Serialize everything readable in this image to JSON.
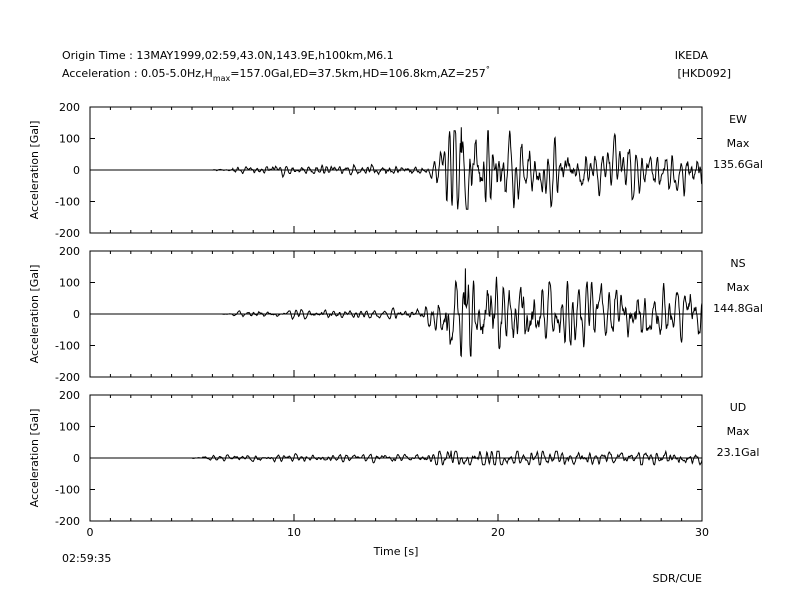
{
  "header": {
    "origin_time": "Origin Time : 13MAY1999,02:59,43.0N,143.9E,h100km,M6.1",
    "acc_prefix": "Acceleration : 0.05-5.0Hz,H",
    "acc_sub": "max",
    "acc_suffix": "=157.0Gal,ED=37.5km,HD=106.8km,AZ=257",
    "acc_degree": "°",
    "station": "IKEDA",
    "code": "[HKD092]"
  },
  "footer": {
    "start_time": "02:59:35",
    "credit": "SDR/CUE"
  },
  "chart_data": [
    {
      "type": "line",
      "component": "EW",
      "max_label": "Max",
      "max_value": "135.6Gal",
      "ylabel": "Acceleration [Gal]",
      "xlabel": "",
      "xlim": [
        0,
        30
      ],
      "ylim": [
        -200,
        200
      ],
      "yticks": [
        200,
        100,
        0,
        -100,
        -200
      ],
      "trace": {
        "start": 6.0,
        "p_arrival": 7.0,
        "s_arrival": 16.8,
        "peak_time": 18.2,
        "peak": 135.6,
        "coda_decay": 0.13,
        "coda_level": 40,
        "pre_level": 8,
        "seed": 7
      }
    },
    {
      "type": "line",
      "component": "NS",
      "max_label": "Max",
      "max_value": "144.8Gal",
      "ylabel": "Acceleration [Gal]",
      "xlabel": "",
      "xlim": [
        0,
        30
      ],
      "ylim": [
        -200,
        200
      ],
      "yticks": [
        200,
        100,
        0,
        -100,
        -200
      ],
      "trace": {
        "start": 6.5,
        "p_arrival": 7.0,
        "s_arrival": 16.3,
        "peak_time": 18.4,
        "peak": 144.8,
        "coda_decay": 0.1,
        "coda_level": 50,
        "pre_level": 6,
        "seed": 19
      }
    },
    {
      "type": "line",
      "component": "UD",
      "max_label": "Max",
      "max_value": "23.1Gal",
      "ylabel": "Acceleration [Gal]",
      "xlabel": "Time [s]",
      "xlim": [
        0,
        30
      ],
      "ylim": [
        -200,
        200
      ],
      "yticks": [
        200,
        100,
        0,
        -100,
        -200
      ],
      "xticks": [
        0,
        10,
        20,
        30
      ],
      "trace": {
        "start": 5.0,
        "p_arrival": 5.5,
        "s_arrival": 16.5,
        "peak_time": 17.7,
        "peak": 23.1,
        "coda_decay": 0.1,
        "coda_level": 12,
        "pre_level": 5,
        "seed": 31
      }
    }
  ]
}
